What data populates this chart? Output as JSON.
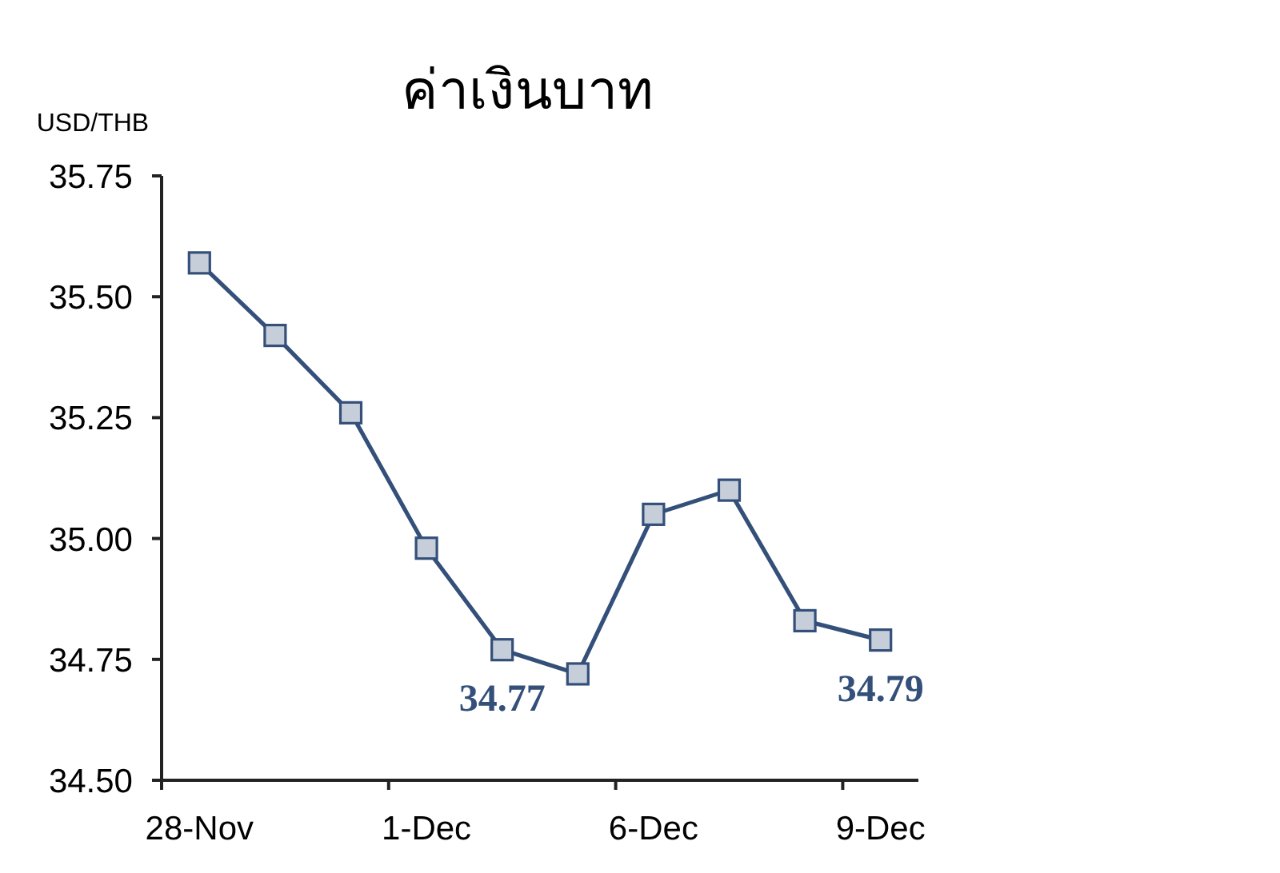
{
  "chart_data": {
    "type": "line",
    "title": "ค่าเงินบาท",
    "ylabel": "USD/THB",
    "categories": [
      "28-Nov",
      null,
      null,
      "1-Dec",
      null,
      null,
      "6-Dec",
      null,
      null,
      "9-Dec"
    ],
    "series": [
      {
        "color": "#34507a",
        "values": [
          35.57,
          35.42,
          35.26,
          34.98,
          34.77,
          34.72,
          35.05,
          35.1,
          34.83,
          34.79
        ],
        "value_labels": [
          null,
          null,
          null,
          null,
          "34.77",
          null,
          null,
          null,
          null,
          "34.79"
        ]
      }
    ],
    "ylim": [
      34.5,
      35.75
    ],
    "yticks": [
      {
        "value": 34.5,
        "label": "34.50"
      },
      {
        "value": 34.75,
        "label": "34.75"
      },
      {
        "value": 35.0,
        "label": "35.00"
      },
      {
        "value": 35.25,
        "label": "35.25"
      },
      {
        "value": 35.5,
        "label": "35.50"
      },
      35.75
    ],
    "marker": "square",
    "line_style": "solid"
  }
}
